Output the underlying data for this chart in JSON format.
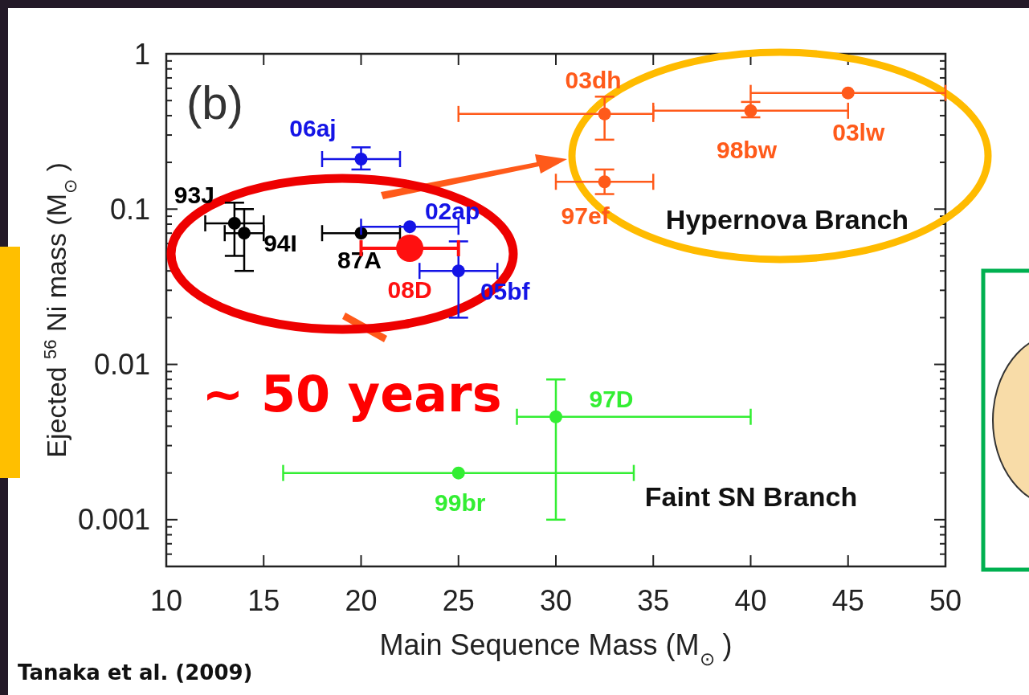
{
  "chart_data": {
    "type": "scatter",
    "xlabel": "Main Sequence Mass (M$_{⊙}$)",
    "ylabel": "Ejected $^{56}$Ni mass (M$_{⊙}$)",
    "xlim": [
      10,
      50
    ],
    "xticks": [
      10,
      15,
      20,
      25,
      30,
      35,
      40,
      45,
      50
    ],
    "ylim": [
      0.0005,
      1
    ],
    "log": true,
    "yticks": [
      {
        "value": 0.0005,
        "label": null
      },
      {
        "value": 0.0006,
        "label": null
      },
      {
        "value": 0.0007,
        "label": null
      },
      {
        "value": 0.0008,
        "label": null
      },
      {
        "value": 0.0009,
        "label": null
      },
      0.001,
      {
        "value": 0.002,
        "label": null
      },
      {
        "value": 0.003,
        "label": null
      },
      {
        "value": 0.004,
        "label": null
      },
      {
        "value": 0.005,
        "label": null
      },
      {
        "value": 0.006,
        "label": null
      },
      {
        "value": 0.007,
        "label": null
      },
      {
        "value": 0.008,
        "label": null
      },
      {
        "value": 0.009,
        "label": null
      },
      0.01,
      {
        "value": 0.02,
        "label": null
      },
      {
        "value": 0.03,
        "label": null
      },
      {
        "value": 0.04,
        "label": null
      },
      {
        "value": 0.05,
        "label": null
      },
      {
        "value": 0.06,
        "label": null
      },
      {
        "value": 0.07,
        "label": null
      },
      {
        "value": 0.08,
        "label": null
      },
      {
        "value": 0.09,
        "label": null
      },
      0.1,
      {
        "value": 0.2,
        "label": null
      },
      {
        "value": 0.3,
        "label": null
      },
      {
        "value": 0.4,
        "label": null
      },
      {
        "value": 0.5,
        "label": null
      },
      {
        "value": 0.6,
        "label": null
      },
      {
        "value": 0.7,
        "label": null
      },
      {
        "value": 0.8,
        "label": null
      },
      {
        "value": 0.9,
        "label": null
      },
      1
    ],
    "marker": "circle",
    "grid": false,
    "series": [
      {
        "name": "93J",
        "color": "#000000",
        "x": [
          13.5
        ],
        "values": [
          0.081
        ],
        "xerrors": [
          [
            12,
            15
          ]
        ],
        "errors": [
          [
            0.05,
            0.11
          ]
        ]
      },
      {
        "name": "94I",
        "color": "#000000",
        "x": [
          14
        ],
        "values": [
          0.07
        ],
        "xerrors": [
          [
            13,
            15
          ]
        ],
        "errors": [
          [
            0.04,
            0.1
          ]
        ]
      },
      {
        "name": "87A",
        "color": "#000000",
        "x": [
          20
        ],
        "values": [
          0.07
        ],
        "xerrors": [
          [
            18,
            22
          ]
        ],
        "errors": [
          null
        ]
      },
      {
        "name": "06aj",
        "color": "#1414e6",
        "x": [
          20
        ],
        "values": [
          0.21
        ],
        "xerrors": [
          [
            18,
            22
          ]
        ],
        "errors": [
          [
            0.18,
            0.25
          ]
        ]
      },
      {
        "name": "02ap",
        "color": "#1414e6",
        "x": [
          22.5
        ],
        "values": [
          0.077
        ],
        "xerrors": [
          [
            20,
            25
          ]
        ],
        "errors": [
          null
        ]
      },
      {
        "name": "05bf",
        "color": "#1414e6",
        "x": [
          25
        ],
        "values": [
          0.04
        ],
        "xerrors": [
          [
            23,
            27
          ]
        ],
        "errors": [
          [
            0.02,
            0.062
          ]
        ]
      },
      {
        "name": "08D",
        "type": "bubble",
        "color": "#ff1010",
        "x": [
          22.5
        ],
        "values": [
          0.056
        ],
        "sizes": [
          1
        ],
        "xerrors": [
          [
            20,
            25
          ]
        ],
        "errors": [
          null
        ]
      },
      {
        "name": "03dh",
        "color": "#ff5a1a",
        "x": [
          32.5
        ],
        "values": [
          0.41
        ],
        "xerrors": [
          [
            25,
            35
          ]
        ],
        "errors": [
          [
            0.28,
            0.53
          ]
        ]
      },
      {
        "name": "98bw",
        "color": "#ff5a1a",
        "x": [
          40
        ],
        "values": [
          0.43
        ],
        "xerrors": [
          [
            35,
            45
          ]
        ],
        "errors": [
          [
            0.39,
            0.49
          ]
        ]
      },
      {
        "name": "03lw",
        "color": "#ff5a1a",
        "x": [
          45
        ],
        "values": [
          0.56
        ],
        "xerrors": [
          [
            40,
            50
          ]
        ],
        "errors": [
          null
        ]
      },
      {
        "name": "97ef",
        "color": "#ff5a1a",
        "x": [
          32.5
        ],
        "values": [
          0.15
        ],
        "xerrors": [
          [
            30,
            35
          ]
        ],
        "errors": [
          [
            0.125,
            0.18
          ]
        ]
      },
      {
        "name": "97D",
        "color": "#33ee33",
        "x": [
          30
        ],
        "values": [
          0.0046
        ],
        "xerrors": [
          [
            28,
            40
          ]
        ],
        "errors": [
          [
            0.001,
            0.008
          ]
        ]
      },
      {
        "name": "99br",
        "color": "#33ee33",
        "x": [
          25
        ],
        "values": [
          0.002
        ],
        "xerrors": [
          [
            16,
            34
          ]
        ],
        "errors": [
          null
        ]
      }
    ],
    "annotations": [
      "(b)",
      "Hypernova Branch",
      "Faint SN Branch",
      "~ 50 years",
      "Tanaka et al. (2009)"
    ]
  }
}
